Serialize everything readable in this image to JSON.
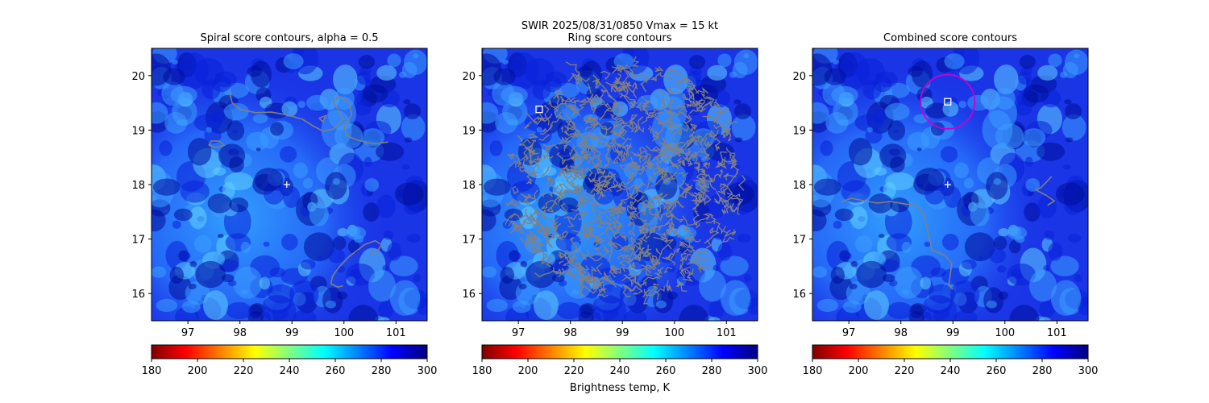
{
  "figure": {
    "suptitle_line1": "SWIR  2025/08/31/0850    Vmax = 15 kt",
    "colorbar_label": "Brightness temp, K"
  },
  "colormap": {
    "name": "jet",
    "stops": [
      "#800000",
      "#ff0000",
      "#ff8000",
      "#ffff00",
      "#80ff80",
      "#00ffff",
      "#0080ff",
      "#0000ff",
      "#000080"
    ]
  },
  "colors": {
    "contour": "#808080",
    "marker": "#ffffff",
    "circle": "#cc00cc"
  },
  "chart_data": [
    {
      "type": "heatmap",
      "title": "Spiral score contours, alpha =  0.5",
      "xlim": [
        96.3,
        101.6
      ],
      "ylim": [
        15.5,
        20.5
      ],
      "xticks": [
        "97",
        "98",
        "99",
        "100",
        "101"
      ],
      "yticks": [
        "16",
        "17",
        "18",
        "19",
        "20"
      ],
      "colorbar": {
        "min": 180,
        "max": 300,
        "ticks": [
          "180",
          "200",
          "220",
          "240",
          "260",
          "280",
          "300"
        ]
      },
      "center_marker": [
        98.9,
        18.0
      ],
      "contours": [
        [
          [
            97.8,
            19.7
          ],
          [
            97.85,
            19.5
          ],
          [
            98.0,
            19.38
          ],
          [
            98.3,
            19.32
          ],
          [
            98.6,
            19.33
          ],
          [
            98.9,
            19.28
          ],
          [
            99.2,
            19.2
          ],
          [
            99.4,
            19.08
          ],
          [
            99.6,
            18.98
          ],
          [
            99.8,
            19.02
          ],
          [
            99.98,
            19.2
          ],
          [
            99.88,
            19.38
          ],
          [
            99.8,
            19.52
          ],
          [
            99.9,
            19.62
          ],
          [
            100.1,
            19.5
          ],
          [
            100.15,
            19.28
          ],
          [
            100.0,
            19.08
          ],
          [
            100.05,
            18.9
          ],
          [
            100.25,
            18.82
          ],
          [
            100.55,
            18.75
          ],
          [
            100.85,
            18.78
          ]
        ],
        [
          [
            97.4,
            18.72
          ],
          [
            97.55,
            18.68
          ],
          [
            97.7,
            18.72
          ],
          [
            97.6,
            18.8
          ],
          [
            97.45,
            18.8
          ],
          [
            97.4,
            18.72
          ]
        ],
        [
          [
            99.52,
            19.22
          ],
          [
            99.6,
            19.15
          ],
          [
            99.64,
            19.26
          ],
          [
            99.52,
            19.22
          ]
        ],
        [
          [
            100.5,
            16.72
          ],
          [
            100.65,
            16.78
          ],
          [
            100.72,
            16.9
          ],
          [
            100.6,
            16.97
          ],
          [
            100.4,
            16.9
          ],
          [
            100.1,
            16.68
          ],
          [
            99.9,
            16.48
          ],
          [
            99.78,
            16.32
          ],
          [
            99.75,
            16.18
          ],
          [
            99.88,
            16.12
          ],
          [
            99.98,
            16.14
          ]
        ]
      ]
    },
    {
      "type": "heatmap",
      "title": "Ring score contours",
      "xlim": [
        96.3,
        101.6
      ],
      "ylim": [
        15.5,
        20.5
      ],
      "xticks": [
        "97",
        "98",
        "99",
        "100",
        "101"
      ],
      "yticks": [
        "16",
        "17",
        "18",
        "19",
        "20"
      ],
      "colorbar": {
        "min": 180,
        "max": 300,
        "ticks": [
          "180",
          "200",
          "220",
          "240",
          "260",
          "280",
          "300"
        ]
      },
      "square_marker": [
        97.4,
        19.38
      ],
      "ring_contours": {
        "center": [
          99.1,
          18.05
        ],
        "radius_deg": 2.25
      }
    },
    {
      "type": "heatmap",
      "title": "Combined score contours",
      "xlim": [
        96.3,
        101.6
      ],
      "ylim": [
        15.5,
        20.5
      ],
      "xticks": [
        "97",
        "98",
        "99",
        "100",
        "101"
      ],
      "yticks": [
        "16",
        "17",
        "18",
        "19",
        "20"
      ],
      "colorbar": {
        "min": 180,
        "max": 300,
        "ticks": [
          "180",
          "200",
          "220",
          "240",
          "260",
          "280",
          "300"
        ]
      },
      "center_marker": [
        98.9,
        18.0
      ],
      "square_marker": [
        98.9,
        19.52
      ],
      "circle": {
        "center": [
          98.9,
          19.52
        ],
        "radius_deg": 0.52
      },
      "contours": [
        [
          [
            96.85,
            17.68
          ],
          [
            97.05,
            17.75
          ],
          [
            97.3,
            17.7
          ],
          [
            97.55,
            17.66
          ],
          [
            97.8,
            17.69
          ],
          [
            98.1,
            17.64
          ],
          [
            98.3,
            17.62
          ],
          [
            98.45,
            17.45
          ],
          [
            98.5,
            17.2
          ],
          [
            98.55,
            17.0
          ],
          [
            98.6,
            16.8
          ],
          [
            98.85,
            16.7
          ],
          [
            98.98,
            16.55
          ],
          [
            98.95,
            16.35
          ],
          [
            98.92,
            16.15
          ],
          [
            99.0,
            16.08
          ]
        ],
        [
          [
            100.9,
            18.15
          ],
          [
            100.7,
            17.95
          ],
          [
            100.6,
            17.9
          ],
          [
            100.8,
            17.8
          ],
          [
            100.95,
            17.7
          ],
          [
            100.82,
            17.62
          ]
        ]
      ]
    }
  ]
}
